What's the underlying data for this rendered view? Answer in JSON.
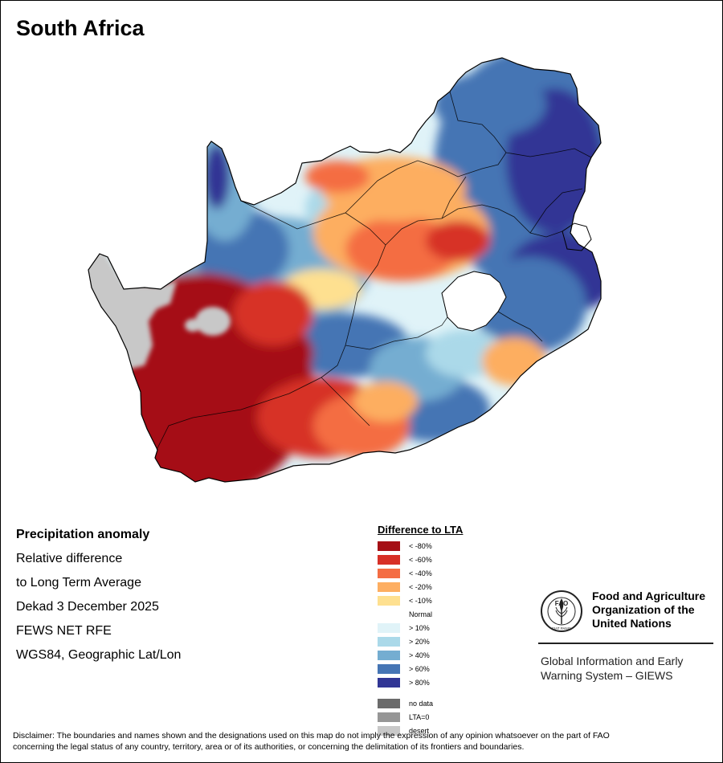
{
  "title": "South Africa",
  "info": {
    "heading": "Precipitation anomaly",
    "lines": [
      "Relative difference",
      "to Long Term Average",
      "Dekad 3 December 2025",
      "FEWS NET RFE",
      "WGS84, Geographic Lat/Lon"
    ]
  },
  "legend": {
    "title": "Difference to LTA",
    "items": [
      {
        "label": "< -80%",
        "color": "#a50f15"
      },
      {
        "label": "< -60%",
        "color": "#d73027"
      },
      {
        "label": "< -40%",
        "color": "#f46d43"
      },
      {
        "label": "< -20%",
        "color": "#fdae61"
      },
      {
        "label": "< -10%",
        "color": "#fee090"
      },
      {
        "label": "Normal",
        "color": "#ffffff"
      },
      {
        "label": "> 10%",
        "color": "#e0f3f8"
      },
      {
        "label": "> 20%",
        "color": "#abd9e9"
      },
      {
        "label": "> 40%",
        "color": "#74add1"
      },
      {
        "label": "> 60%",
        "color": "#4575b4"
      },
      {
        "label": "> 80%",
        "color": "#313695"
      }
    ],
    "special": [
      {
        "label": "no data",
        "color": "#6b6b6b"
      },
      {
        "label": "LTA=0",
        "color": "#969696"
      },
      {
        "label": "desert",
        "color": "#c8c8c8"
      }
    ]
  },
  "fao": {
    "logo_text": "FAO",
    "logo_motto": "FIAT PANIS",
    "name_lines": [
      "Food and Agriculture",
      "Organization of the",
      "United Nations"
    ],
    "giews_lines": [
      "Global Information and Early",
      "Warning System – GIEWS"
    ]
  },
  "disclaimer_lines": [
    "Disclaimer: The boundaries and names shown and the designations used on this map do not imply the expression of any opinion whatsoever on the part of FAO",
    "concerning the legal status of any country, territory, area or of its authorities, or concerning the delimitation of its frontiers and boundaries."
  ]
}
